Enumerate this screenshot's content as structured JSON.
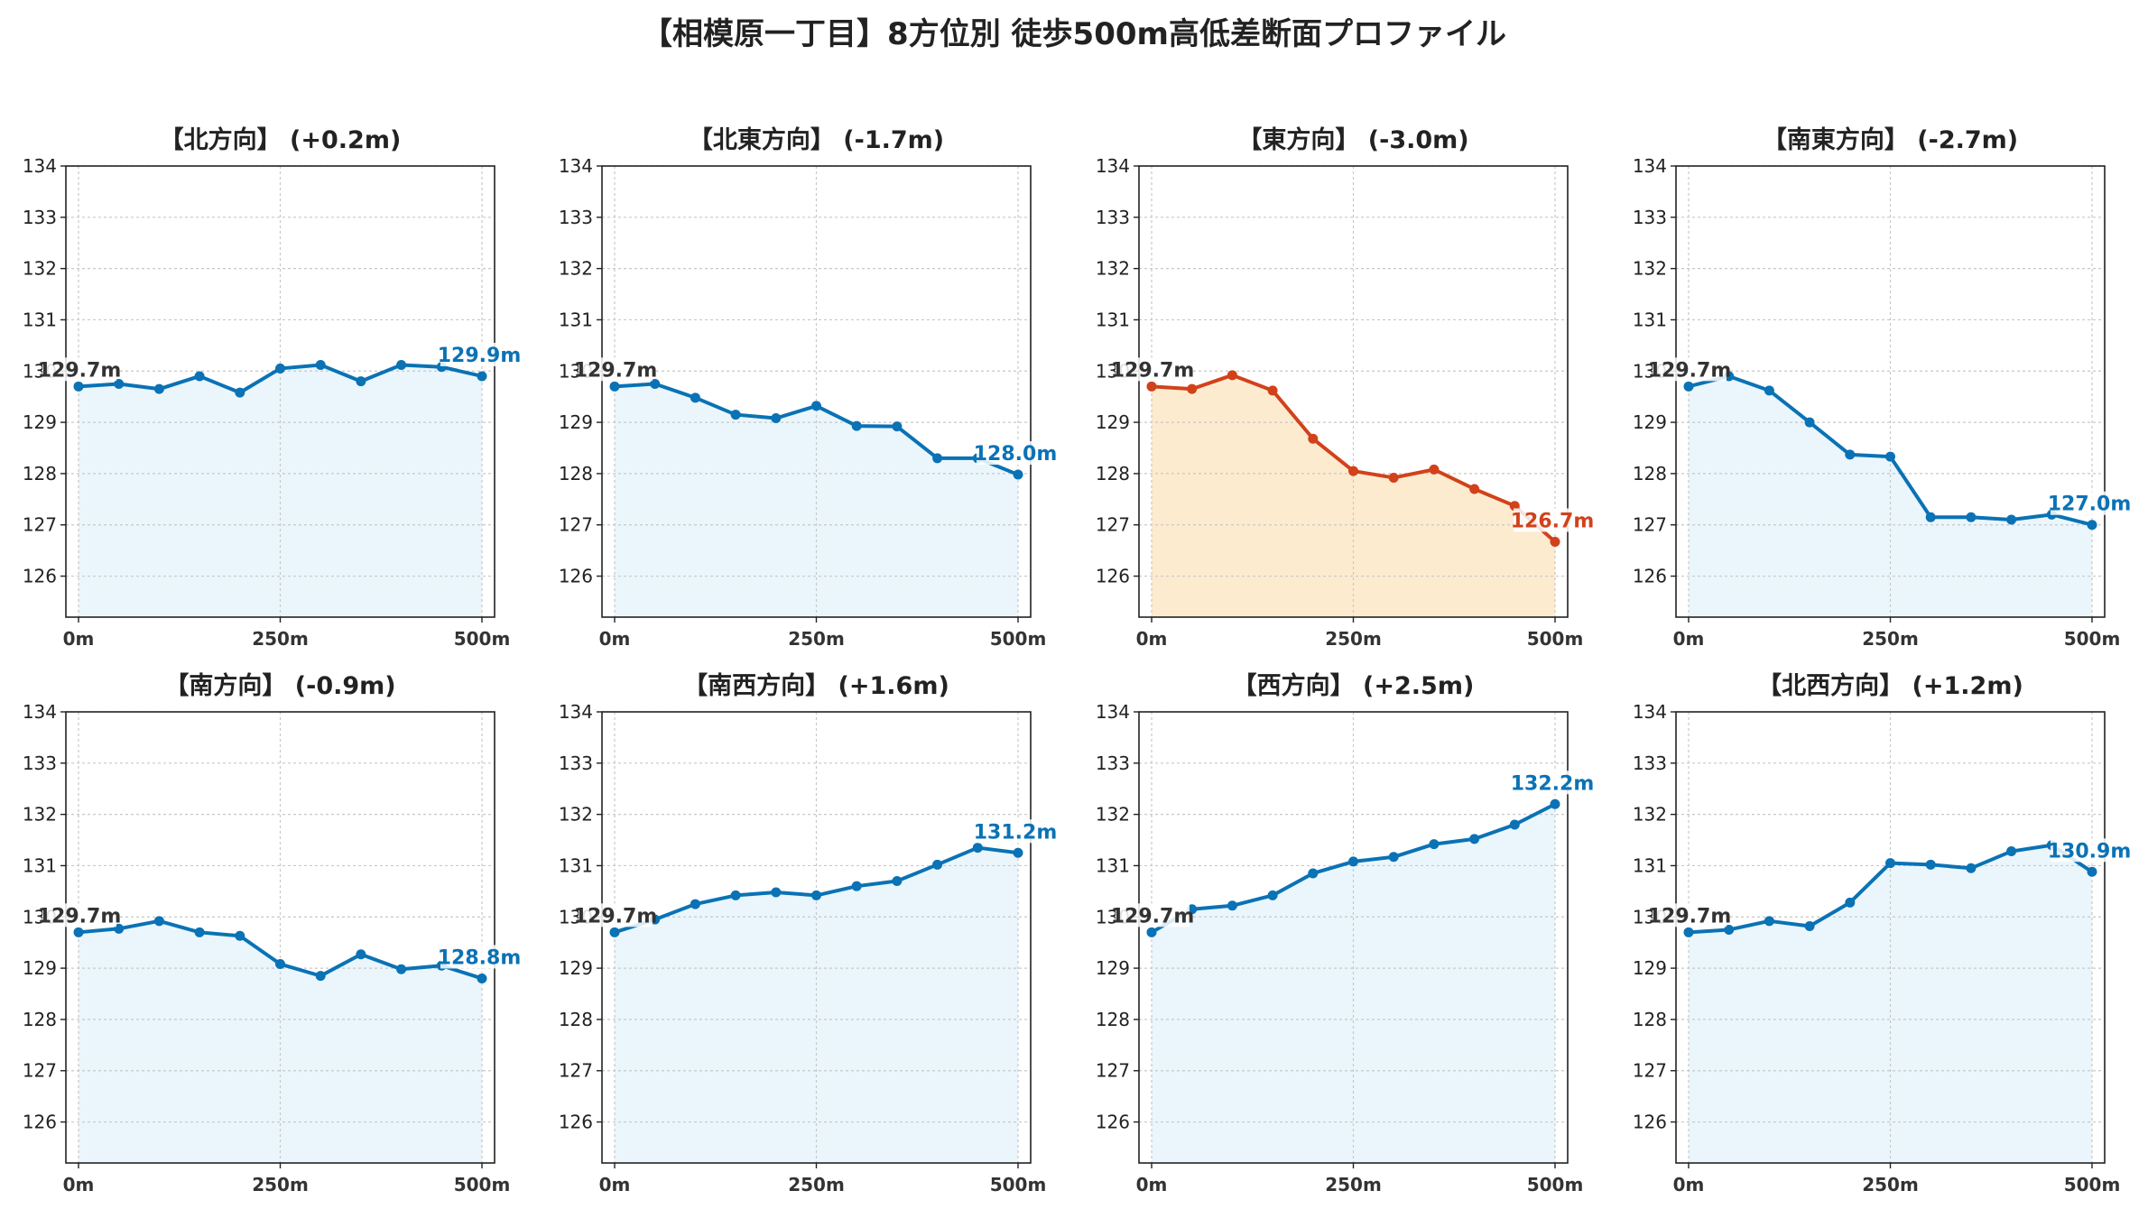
{
  "title": "【相模原一丁目】8方位別 徒歩500m高低差断面プロファイル",
  "colors": {
    "normal_line": "#0a72b5",
    "normal_fill": "#eaf6fc",
    "highlight_line": "#d1421a",
    "highlight_fill": "#fdebd0",
    "start_label": "#333333"
  },
  "chart_data": [
    {
      "type": "area",
      "title": "【北方向】 (+0.2m)",
      "x": [
        0,
        50,
        100,
        150,
        200,
        250,
        300,
        350,
        400,
        450,
        500
      ],
      "xticks": [
        "0m",
        "250m",
        "500m"
      ],
      "y": [
        129.7,
        129.75,
        129.65,
        129.9,
        129.58,
        130.05,
        130.12,
        129.8,
        130.12,
        130.08,
        129.9
      ],
      "ylim": [
        125.2,
        134
      ],
      "yticks": [
        126,
        127,
        128,
        129,
        130,
        131,
        132,
        133,
        134
      ],
      "start_label": "129.7m",
      "end_label": "129.9m",
      "highlight": false,
      "grid": true
    },
    {
      "type": "area",
      "title": "【北東方向】 (-1.7m)",
      "x": [
        0,
        50,
        100,
        150,
        200,
        250,
        300,
        350,
        400,
        450,
        500
      ],
      "xticks": [
        "0m",
        "250m",
        "500m"
      ],
      "y": [
        129.7,
        129.75,
        129.48,
        129.15,
        129.08,
        129.32,
        128.93,
        128.92,
        128.3,
        128.3,
        127.98
      ],
      "ylim": [
        125.2,
        134
      ],
      "yticks": [
        126,
        127,
        128,
        129,
        130,
        131,
        132,
        133,
        134
      ],
      "start_label": "129.7m",
      "end_label": "128.0m",
      "highlight": false,
      "grid": true
    },
    {
      "type": "area",
      "title": "【東方向】 (-3.0m)",
      "x": [
        0,
        50,
        100,
        150,
        200,
        250,
        300,
        350,
        400,
        450,
        500
      ],
      "xticks": [
        "0m",
        "250m",
        "500m"
      ],
      "y": [
        129.7,
        129.65,
        129.92,
        129.62,
        128.68,
        128.05,
        127.92,
        128.08,
        127.7,
        127.37,
        126.67
      ],
      "ylim": [
        125.2,
        134
      ],
      "yticks": [
        126,
        127,
        128,
        129,
        130,
        131,
        132,
        133,
        134
      ],
      "start_label": "129.7m",
      "end_label": "126.7m",
      "highlight": true,
      "grid": true
    },
    {
      "type": "area",
      "title": "【南東方向】 (-2.7m)",
      "x": [
        0,
        50,
        100,
        150,
        200,
        250,
        300,
        350,
        400,
        450,
        500
      ],
      "xticks": [
        "0m",
        "250m",
        "500m"
      ],
      "y": [
        129.7,
        129.9,
        129.62,
        129.0,
        128.37,
        128.33,
        127.15,
        127.15,
        127.1,
        127.2,
        127.0
      ],
      "ylim": [
        125.2,
        134
      ],
      "yticks": [
        126,
        127,
        128,
        129,
        130,
        131,
        132,
        133,
        134
      ],
      "start_label": "129.7m",
      "end_label": "127.0m",
      "highlight": false,
      "grid": true
    },
    {
      "type": "area",
      "title": "【南方向】 (-0.9m)",
      "x": [
        0,
        50,
        100,
        150,
        200,
        250,
        300,
        350,
        400,
        450,
        500
      ],
      "xticks": [
        "0m",
        "250m",
        "500m"
      ],
      "y": [
        129.7,
        129.77,
        129.92,
        129.7,
        129.63,
        129.08,
        128.85,
        129.27,
        128.98,
        129.05,
        128.8
      ],
      "ylim": [
        125.2,
        134
      ],
      "yticks": [
        126,
        127,
        128,
        129,
        130,
        131,
        132,
        133,
        134
      ],
      "start_label": "129.7m",
      "end_label": "128.8m",
      "highlight": false,
      "grid": true
    },
    {
      "type": "area",
      "title": "【南西方向】 (+1.6m)",
      "x": [
        0,
        50,
        100,
        150,
        200,
        250,
        300,
        350,
        400,
        450,
        500
      ],
      "xticks": [
        "0m",
        "250m",
        "500m"
      ],
      "y": [
        129.7,
        129.95,
        130.25,
        130.42,
        130.48,
        130.42,
        130.6,
        130.7,
        131.02,
        131.35,
        131.25
      ],
      "ylim": [
        125.2,
        134
      ],
      "yticks": [
        126,
        127,
        128,
        129,
        130,
        131,
        132,
        133,
        134
      ],
      "start_label": "129.7m",
      "end_label": "131.2m",
      "highlight": false,
      "grid": true
    },
    {
      "type": "area",
      "title": "【西方向】 (+2.5m)",
      "x": [
        0,
        50,
        100,
        150,
        200,
        250,
        300,
        350,
        400,
        450,
        500
      ],
      "xticks": [
        "0m",
        "250m",
        "500m"
      ],
      "y": [
        129.7,
        130.15,
        130.22,
        130.42,
        130.85,
        131.08,
        131.17,
        131.42,
        131.52,
        131.8,
        132.2
      ],
      "ylim": [
        125.2,
        134
      ],
      "yticks": [
        126,
        127,
        128,
        129,
        130,
        131,
        132,
        133,
        134
      ],
      "start_label": "129.7m",
      "end_label": "132.2m",
      "highlight": false,
      "grid": true
    },
    {
      "type": "area",
      "title": "【北西方向】 (+1.2m)",
      "x": [
        0,
        50,
        100,
        150,
        200,
        250,
        300,
        350,
        400,
        450,
        500
      ],
      "xticks": [
        "0m",
        "250m",
        "500m"
      ],
      "y": [
        129.7,
        129.75,
        129.92,
        129.82,
        130.28,
        131.05,
        131.02,
        130.95,
        131.28,
        131.4,
        130.88
      ],
      "ylim": [
        125.2,
        134
      ],
      "yticks": [
        126,
        127,
        128,
        129,
        130,
        131,
        132,
        133,
        134
      ],
      "start_label": "129.7m",
      "end_label": "130.9m",
      "highlight": false,
      "grid": true
    }
  ]
}
